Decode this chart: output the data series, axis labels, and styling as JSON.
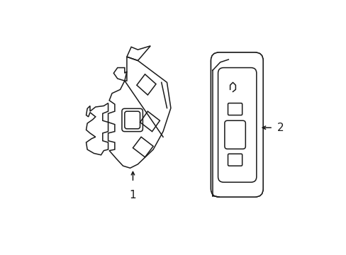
{
  "background_color": "#ffffff",
  "line_color": "#1a1a1a",
  "line_width": 1.1,
  "fig_width": 4.89,
  "fig_height": 3.6,
  "dpi": 100,
  "label1_text": "1",
  "label2_text": "2"
}
